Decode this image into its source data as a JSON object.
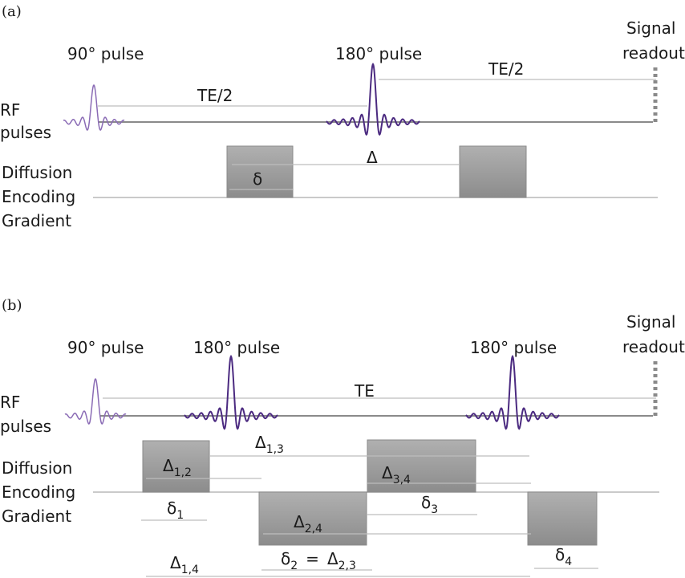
{
  "panel_a": {
    "label": "(a)",
    "pulse_90": "90° pulse",
    "pulse_180": "180° pulse",
    "signal_readout_line1": "Signal",
    "signal_readout_line2": "readout",
    "te_half_1": "TE/2",
    "te_half_2": "TE/2",
    "rf_line1": "RF",
    "rf_line2": "pulses",
    "grad_line1": "Diffusion",
    "grad_line2": "Encoding",
    "grad_line3": "Gradient",
    "delta_big": "Δ",
    "delta_small": "δ"
  },
  "panel_b": {
    "label": "(b)",
    "pulse_90": "90° pulse",
    "pulse_180_1": "180° pulse",
    "pulse_180_2": "180° pulse",
    "signal_readout_line1": "Signal",
    "signal_readout_line2": "readout",
    "te": "TE",
    "rf_line1": "RF",
    "rf_line2": "pulses",
    "grad_line1": "Diffusion",
    "grad_line2": "Encoding",
    "grad_line3": "Gradient",
    "D12": "Δ",
    "D12_sub": "1,2",
    "D13": "Δ",
    "D13_sub": "1,3",
    "D34": "Δ",
    "D34_sub": "3,4",
    "D24": "Δ",
    "D24_sub": "2,4",
    "D14": "Δ",
    "D14_sub": "1,4",
    "d1": "δ",
    "d1_sub": "1",
    "d2": "δ",
    "d2_sub": "2",
    "eq": "=",
    "D23": "Δ",
    "D23_sub": "2,3",
    "d3": "δ",
    "d3_sub": "3",
    "d4": "δ",
    "d4_sub": "4"
  },
  "colors": {
    "pulse": "#5b3a8c",
    "gradient_block": "#9a9a9a",
    "lines": "#bdbdbd"
  }
}
